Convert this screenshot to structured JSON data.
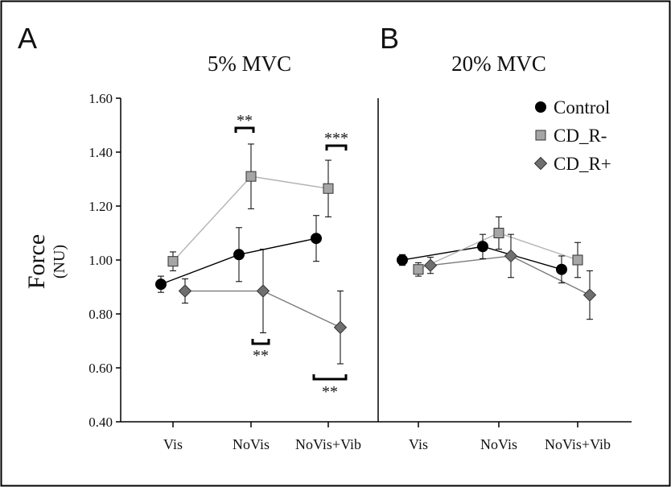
{
  "panels": [
    {
      "letter": "A",
      "title": "5% MVC"
    },
    {
      "letter": "B",
      "title": "20% MVC"
    }
  ],
  "chart_data": [
    {
      "type": "line",
      "panel": "A",
      "title": "5% MVC",
      "ylabel": "Force",
      "ylabel_unit": "(NU)",
      "xlabel": "",
      "ylim": [
        0.4,
        1.6
      ],
      "yticks": [
        "1.60",
        "1.40",
        "1.20",
        "1.00",
        "0.80",
        "0.60",
        "0.40"
      ],
      "categories": [
        "Vis",
        "NoVis",
        "NoVis+Vib"
      ],
      "series": [
        {
          "name": "Control",
          "values": [
            0.91,
            1.02,
            1.08
          ],
          "errors": [
            0.03,
            0.1,
            0.085
          ]
        },
        {
          "name": "CD_R-",
          "values": [
            0.995,
            1.31,
            1.265
          ],
          "errors": [
            0.035,
            0.12,
            0.105
          ]
        },
        {
          "name": "CD_R+",
          "values": [
            0.885,
            0.885,
            0.75
          ],
          "errors": [
            0.045,
            0.155,
            0.135
          ]
        }
      ],
      "annotations": [
        {
          "text": "**",
          "category": "NoVis",
          "position": "above"
        },
        {
          "text": "**",
          "category": "NoVis",
          "position": "below"
        },
        {
          "text": "***",
          "category": "NoVis+Vib",
          "position": "above"
        },
        {
          "text": "**",
          "category": "NoVis+Vib",
          "position": "below"
        }
      ]
    },
    {
      "type": "line",
      "panel": "B",
      "title": "20% MVC",
      "ylim": [
        0.4,
        1.6
      ],
      "categories": [
        "Vis",
        "NoVis",
        "NoVis+Vib"
      ],
      "series": [
        {
          "name": "Control",
          "values": [
            1.0,
            1.05,
            0.965
          ],
          "errors": [
            0.02,
            0.045,
            0.05
          ]
        },
        {
          "name": "CD_R-",
          "values": [
            0.965,
            1.1,
            1.0
          ],
          "errors": [
            0.025,
            0.06,
            0.065
          ]
        },
        {
          "name": "CD_R+",
          "values": [
            0.98,
            1.015,
            0.87
          ],
          "errors": [
            0.03,
            0.08,
            0.09
          ]
        }
      ]
    }
  ],
  "legend": {
    "position": "top-right",
    "items": [
      {
        "label": "Control",
        "marker": "circle",
        "color": "#000000"
      },
      {
        "label": "CD_R-",
        "marker": "square",
        "color": "#a6a6a6"
      },
      {
        "label": "CD_R+",
        "marker": "diamond",
        "color": "#6f6f6f"
      }
    ]
  },
  "colors": {
    "control_line": "#000000",
    "cd_r_minus_line": "#b3b3b3",
    "cd_r_plus_line": "#7a7a7a",
    "axis": "#000000",
    "frame": "#000000"
  }
}
